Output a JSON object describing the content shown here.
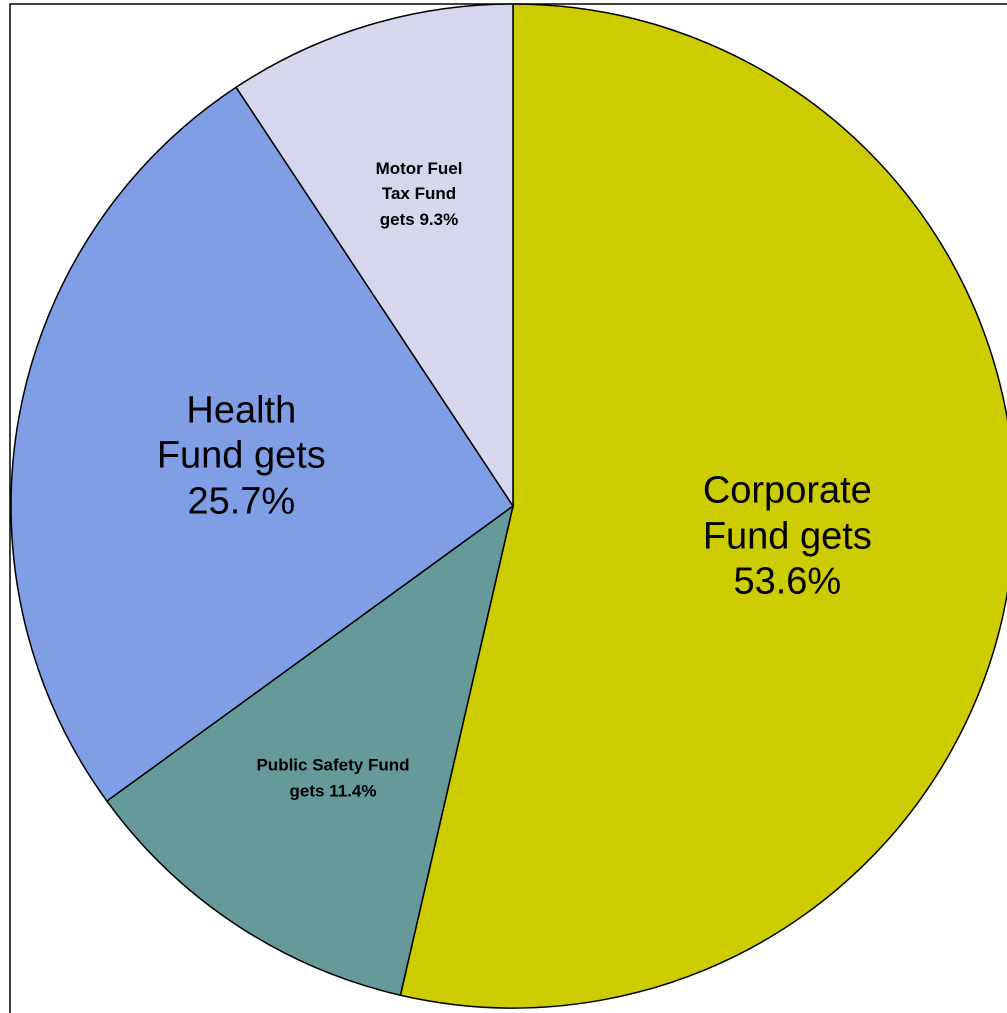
{
  "chart_data": {
    "type": "pie",
    "values": [
      53.6,
      11.4,
      25.7,
      9.3
    ],
    "value_labels": [
      "Corporate Fund gets 53.6%",
      "Public Safety Fund gets 11.4%",
      "Health Fund gets 25.7%",
      "Motor Fuel Tax Fund gets 9.3%"
    ],
    "colors": [
      "#cccc00",
      "#669999",
      "#7f9ee6",
      "#d6d6ec"
    ]
  }
}
